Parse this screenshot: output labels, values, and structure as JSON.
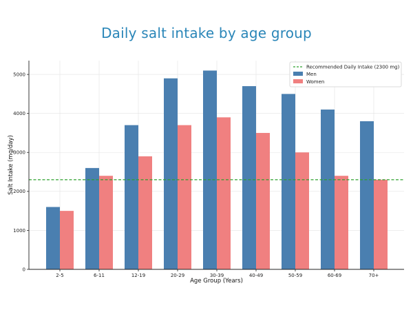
{
  "chart_data": {
    "type": "bar",
    "title": "Daily salt intake by age group",
    "xlabel": "Age Group (Years)",
    "ylabel": "Salt Intake (mg/day)",
    "categories": [
      "2-5",
      "6-11",
      "12-19",
      "20-29",
      "30-39",
      "40-49",
      "50-59",
      "60-69",
      "70+"
    ],
    "series": [
      {
        "name": "Men",
        "color": "#4a7fb0",
        "values": [
          1600,
          2600,
          3700,
          4900,
          5100,
          4700,
          4500,
          4100,
          3800
        ]
      },
      {
        "name": "Women",
        "color": "#f08080",
        "values": [
          1500,
          2400,
          2900,
          3700,
          3900,
          3500,
          3000,
          2400,
          2300
        ]
      }
    ],
    "reference_line": {
      "label": "Recommended Daily Intake (2300 mg)",
      "value": 2300,
      "color": "#2ca02c",
      "style": "dashed"
    },
    "ylim": [
      0,
      5355
    ],
    "yticks": [
      0,
      1000,
      2000,
      3000,
      4000,
      5000
    ],
    "grid": true,
    "legend_position": "top-right"
  }
}
